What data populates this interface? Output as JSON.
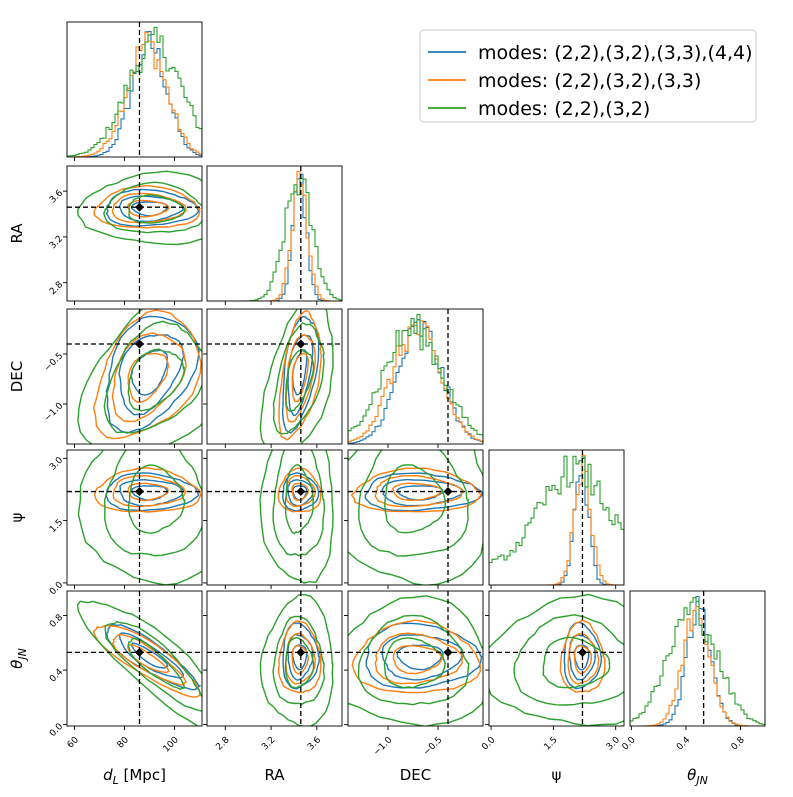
{
  "chart_data": {
    "type": "corner",
    "parameters": [
      {
        "key": "dL",
        "label": "d_L [Mpc]",
        "label_main": "d",
        "label_sub": "L",
        "label_unit": " [Mpc]",
        "range": [
          57,
          111
        ],
        "ticks": [
          60,
          80,
          100
        ],
        "tick_labels": [
          "60",
          "80",
          "100"
        ],
        "truth": 86
      },
      {
        "key": "RA",
        "label": "RA",
        "label_main": "RA",
        "label_sub": "",
        "label_unit": "",
        "range": [
          2.64,
          3.82
        ],
        "ticks": [
          2.8,
          3.2,
          3.6
        ],
        "tick_labels": [
          "2.8",
          "3.2",
          "3.6"
        ],
        "truth": 3.46
      },
      {
        "key": "DEC",
        "label": "DEC",
        "label_main": "DEC",
        "label_sub": "",
        "label_unit": "",
        "range": [
          -1.4,
          -0.05
        ],
        "ticks": [
          -1.0,
          -0.5
        ],
        "tick_labels": [
          "−1.0",
          "−0.5"
        ],
        "truth": -0.4
      },
      {
        "key": "psi",
        "label": "ψ",
        "label_main": "ψ",
        "label_sub": "",
        "label_unit": "",
        "range": [
          -0.05,
          3.2
        ],
        "ticks": [
          0.0,
          1.5,
          3.0
        ],
        "tick_labels": [
          "0.0",
          "1.5",
          "3.0"
        ],
        "truth": 2.2
      },
      {
        "key": "theta",
        "label": "θ_JN",
        "label_main": "θ",
        "label_sub": "JN",
        "label_unit": "",
        "range": [
          -0.01,
          0.98
        ],
        "ticks": [
          0.0,
          0.4,
          0.8
        ],
        "tick_labels": [
          "0.0",
          "0.4",
          "0.8"
        ],
        "truth": 0.53
      }
    ],
    "series": [
      {
        "name": "modes: (2,2),(3,2),(3,3),(4,4)",
        "color": "#1f77b4",
        "mean": [
          90,
          3.45,
          -0.68,
          2.18,
          0.5
        ],
        "sd": [
          7,
          0.06,
          0.22,
          0.17,
          0.09
        ]
      },
      {
        "name": "modes: (2,2),(3,2),(3,3)",
        "color": "#ff7f0e",
        "mean": [
          89,
          3.45,
          -0.72,
          2.2,
          0.48
        ],
        "sd": [
          8,
          0.07,
          0.24,
          0.2,
          0.1
        ]
      },
      {
        "name": "modes: (2,2),(3,2)",
        "color": "#2ca02c",
        "mean": [
          92,
          3.44,
          -0.75,
          2.0,
          0.45
        ],
        "sd": [
          11,
          0.12,
          0.3,
          0.8,
          0.18
        ]
      }
    ],
    "truth_marker": "black diamond with dashed black lines",
    "legend_position": "top-right"
  }
}
